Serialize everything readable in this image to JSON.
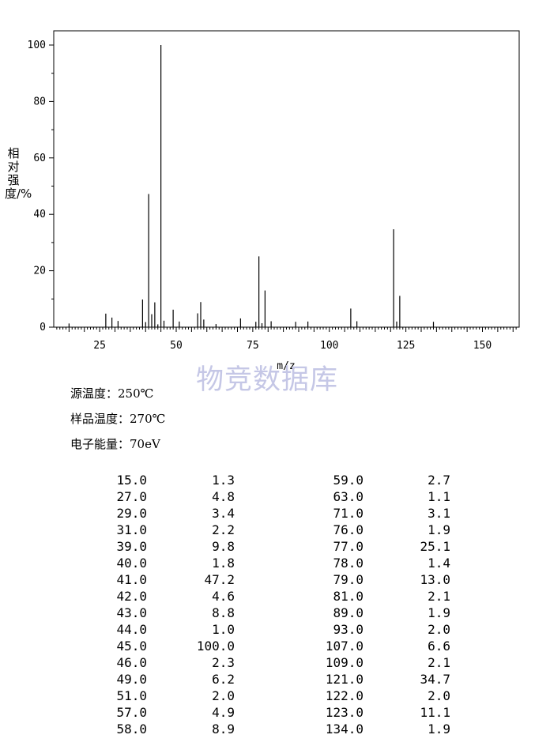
{
  "chart_data": {
    "type": "bar",
    "xlabel": "m/z",
    "ylabel": "相对强度/%",
    "xlim": [
      10,
      162
    ],
    "ylim": [
      0,
      100
    ],
    "x_ticks": [
      25,
      50,
      75,
      100,
      125,
      150
    ],
    "y_ticks": [
      0,
      20,
      40,
      60,
      80,
      100
    ],
    "series": [
      {
        "x": [
          15,
          27,
          29,
          31,
          39,
          40,
          41,
          42,
          43,
          44,
          45,
          46,
          49,
          51,
          57,
          58,
          59,
          63,
          71,
          76,
          77,
          78,
          79,
          81,
          89,
          93,
          107,
          109,
          121,
          122,
          123,
          134
        ],
        "values": [
          1.3,
          4.8,
          3.4,
          2.2,
          9.8,
          1.8,
          47.2,
          4.6,
          8.8,
          1.0,
          100.0,
          2.3,
          6.2,
          2.0,
          4.9,
          8.9,
          2.7,
          1.1,
          3.1,
          1.9,
          25.1,
          1.4,
          13.0,
          2.1,
          1.9,
          2.0,
          6.6,
          2.1,
          34.7,
          2.0,
          11.1,
          1.9
        ]
      }
    ]
  },
  "watermark": "物竞数据库",
  "info": {
    "source_temp": "源温度：250℃",
    "sample_temp": "样品温度：270℃",
    "electron_energy": "电子能量：70eV"
  },
  "table": {
    "rows": [
      [
        "15.0",
        "1.3",
        "59.0",
        "2.7"
      ],
      [
        "27.0",
        "4.8",
        "63.0",
        "1.1"
      ],
      [
        "29.0",
        "3.4",
        "71.0",
        "3.1"
      ],
      [
        "31.0",
        "2.2",
        "76.0",
        "1.9"
      ],
      [
        "39.0",
        "9.8",
        "77.0",
        "25.1"
      ],
      [
        "40.0",
        "1.8",
        "78.0",
        "1.4"
      ],
      [
        "41.0",
        "47.2",
        "79.0",
        "13.0"
      ],
      [
        "42.0",
        "4.6",
        "81.0",
        "2.1"
      ],
      [
        "43.0",
        "8.8",
        "89.0",
        "1.9"
      ],
      [
        "44.0",
        "1.0",
        "93.0",
        "2.0"
      ],
      [
        "45.0",
        "100.0",
        "107.0",
        "6.6"
      ],
      [
        "46.0",
        "2.3",
        "109.0",
        "2.1"
      ],
      [
        "49.0",
        "6.2",
        "121.0",
        "34.7"
      ],
      [
        "51.0",
        "2.0",
        "122.0",
        "2.0"
      ],
      [
        "57.0",
        "4.9",
        "123.0",
        "11.1"
      ],
      [
        "58.0",
        "8.9",
        "134.0",
        "1.9"
      ]
    ]
  }
}
